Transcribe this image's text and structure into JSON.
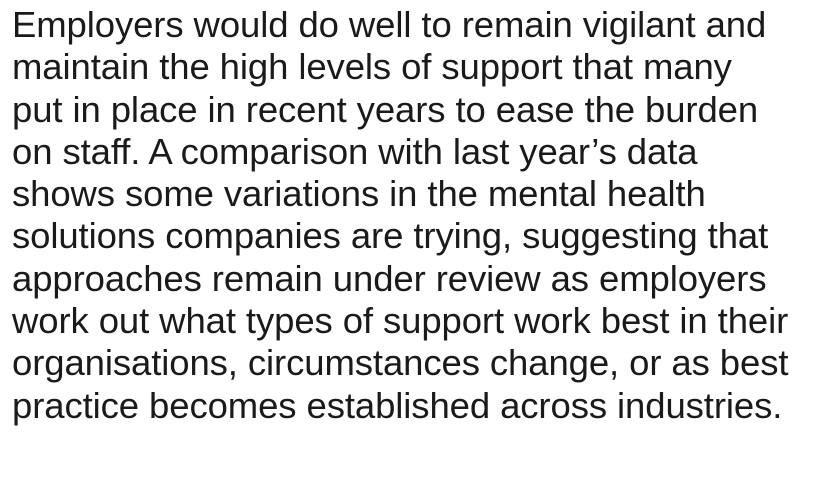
{
  "paragraph": {
    "lines": [
      "Employers would do well to remain vigilant and",
      "maintain the high levels of support that many",
      "put in place in recent years to ease the burden",
      "on staff. A comparison with last year’s data",
      "shows some variations in the mental health",
      "solutions companies are trying, suggesting that",
      "approaches remain under review as employers",
      "work out what types of support work best in their",
      "organisations, circumstances change, or as best",
      "practice becomes established across industries."
    ]
  }
}
